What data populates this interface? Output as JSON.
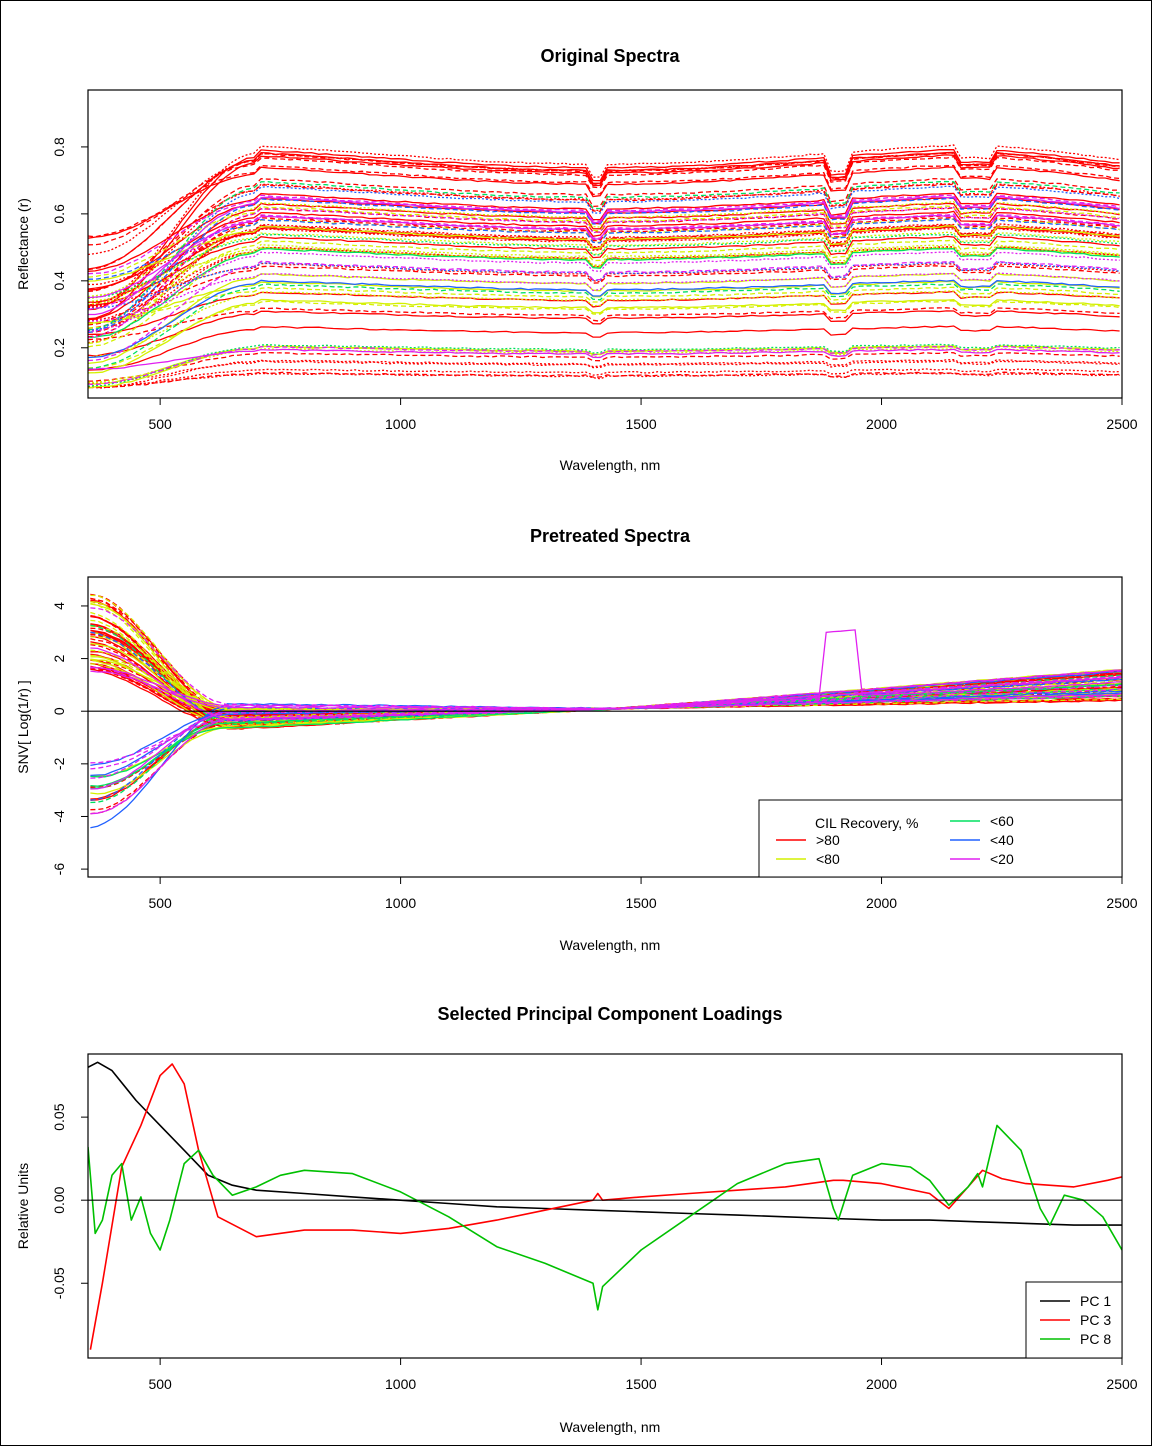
{
  "chart_data": [
    {
      "type": "line",
      "title": "Original Spectra",
      "xlabel": "Wavelength, nm",
      "ylabel": "Reflectance (r)",
      "xlim": [
        350,
        2500
      ],
      "ylim": [
        0.05,
        0.97
      ],
      "xticks": [
        500,
        1000,
        1500,
        2000,
        2500
      ],
      "yticks": [
        0.2,
        0.4,
        0.6,
        0.8
      ],
      "grid": false,
      "series_groups": [
        {
          "name": ">80",
          "color": "#ff0000",
          "count": 40,
          "level_range": [
            0.1,
            0.78
          ]
        },
        {
          "name": "<80",
          "color": "#d4f000",
          "count": 18,
          "level_range": [
            0.16,
            0.62
          ]
        },
        {
          "name": "<60",
          "color": "#00e060",
          "count": 5,
          "level_range": [
            0.12,
            0.72
          ]
        },
        {
          "name": "<40",
          "color": "#2060ff",
          "count": 5,
          "level_range": [
            0.2,
            0.7
          ]
        },
        {
          "name": "<20",
          "color": "#e020f0",
          "count": 10,
          "level_range": [
            0.07,
            0.66
          ]
        }
      ]
    },
    {
      "type": "line",
      "title": "Pretreated Spectra",
      "xlabel": "Wavelength, nm",
      "ylabel": "SNV[ Log(1/r) ]",
      "xlim": [
        350,
        2500
      ],
      "ylim": [
        -6.3,
        5.1
      ],
      "xticks": [
        500,
        1000,
        1500,
        2000,
        2500
      ],
      "yticks": [
        -6,
        -4,
        -2,
        0,
        2,
        4
      ],
      "hline": 0,
      "legend": {
        "position": "bottom-right",
        "title": "CIL Recovery, %",
        "entries": [
          {
            "label": ">80",
            "color": "#ff0000"
          },
          {
            "label": "<80",
            "color": "#d4f000"
          },
          {
            "label": "<60",
            "color": "#00e060"
          },
          {
            "label": "<40",
            "color": "#2060ff"
          },
          {
            "label": "<20",
            "color": "#e020f0"
          }
        ]
      }
    },
    {
      "type": "line",
      "title": "Selected Principal Component Loadings",
      "xlabel": "Wavelength, nm",
      "ylabel": "Relative Units",
      "xlim": [
        350,
        2500
      ],
      "ylim": [
        -0.095,
        0.088
      ],
      "xticks": [
        500,
        1000,
        1500,
        2000,
        2500
      ],
      "yticks": [
        -0.05,
        0.0,
        0.05
      ],
      "ytick_labels": [
        "-0.05",
        "0.00",
        "0.05"
      ],
      "hline": 0,
      "legend": {
        "position": "bottom-right"
      },
      "series": [
        {
          "name": "PC 1",
          "color": "#000000",
          "x": [
            350,
            370,
            400,
            450,
            500,
            550,
            600,
            650,
            700,
            800,
            900,
            1000,
            1100,
            1200,
            1300,
            1400,
            1500,
            1600,
            1700,
            1800,
            1900,
            2000,
            2100,
            2200,
            2300,
            2400,
            2500
          ],
          "y": [
            0.08,
            0.083,
            0.078,
            0.06,
            0.045,
            0.03,
            0.015,
            0.009,
            0.006,
            0.004,
            0.002,
            0.0,
            -0.002,
            -0.004,
            -0.005,
            -0.006,
            -0.007,
            -0.008,
            -0.009,
            -0.01,
            -0.011,
            -0.012,
            -0.012,
            -0.013,
            -0.014,
            -0.015,
            -0.015
          ]
        },
        {
          "name": "PC 3",
          "color": "#ff0000",
          "x": [
            355,
            380,
            420,
            460,
            500,
            525,
            550,
            580,
            620,
            700,
            800,
            900,
            1000,
            1100,
            1200,
            1300,
            1400,
            1410,
            1420,
            1500,
            1600,
            1700,
            1800,
            1900,
            1920,
            2000,
            2100,
            2140,
            2180,
            2210,
            2250,
            2300,
            2400,
            2470,
            2500
          ],
          "y": [
            -0.09,
            -0.05,
            0.02,
            0.045,
            0.075,
            0.082,
            0.07,
            0.03,
            -0.01,
            -0.022,
            -0.018,
            -0.018,
            -0.02,
            -0.017,
            -0.012,
            -0.006,
            0.0,
            0.004,
            0.0,
            0.002,
            0.004,
            0.006,
            0.008,
            0.012,
            0.012,
            0.01,
            0.004,
            -0.005,
            0.008,
            0.018,
            0.013,
            0.01,
            0.008,
            0.012,
            0.014
          ]
        },
        {
          "name": "PC 8",
          "color": "#00c000",
          "x": [
            350,
            365,
            380,
            400,
            420,
            440,
            460,
            480,
            500,
            520,
            550,
            580,
            610,
            650,
            700,
            750,
            800,
            900,
            1000,
            1100,
            1200,
            1300,
            1400,
            1410,
            1420,
            1500,
            1600,
            1700,
            1800,
            1870,
            1900,
            1910,
            1940,
            2000,
            2060,
            2100,
            2140,
            2180,
            2200,
            2210,
            2240,
            2290,
            2330,
            2350,
            2380,
            2420,
            2460,
            2500
          ],
          "y": [
            0.032,
            -0.02,
            -0.012,
            0.015,
            0.022,
            -0.012,
            0.002,
            -0.02,
            -0.03,
            -0.012,
            0.022,
            0.03,
            0.015,
            0.003,
            0.008,
            0.015,
            0.018,
            0.016,
            0.005,
            -0.01,
            -0.028,
            -0.038,
            -0.05,
            -0.066,
            -0.052,
            -0.03,
            -0.01,
            0.01,
            0.022,
            0.025,
            -0.005,
            -0.012,
            0.015,
            0.022,
            0.02,
            0.012,
            -0.003,
            0.008,
            0.016,
            0.008,
            0.045,
            0.03,
            -0.005,
            -0.015,
            0.003,
            0.0,
            -0.01,
            -0.03
          ]
        }
      ]
    }
  ]
}
